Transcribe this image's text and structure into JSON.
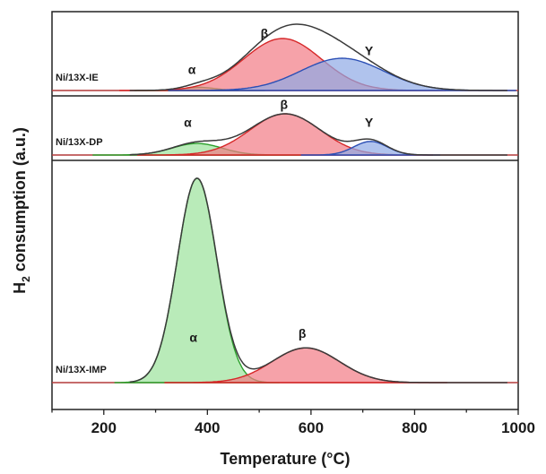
{
  "chart_data": {
    "type": "area",
    "title": "",
    "xlabel": "Temperature (°C)",
    "ylabel_main": "H",
    "ylabel_sub": "2",
    "ylabel_rest": " consumption (a.u.)",
    "xlim": [
      100,
      1000
    ],
    "xticks": [
      200,
      400,
      600,
      800,
      1000
    ],
    "grid": false,
    "panels": [
      {
        "name": "Ni/13X-IE",
        "peaks": [
          {
            "label": "α",
            "center": 385,
            "amplitude": 0.06,
            "sigma": 30,
            "color": "#2ca02c",
            "fill": "#9be39b"
          },
          {
            "label": "β",
            "center": 545,
            "amplitude": 1.0,
            "sigma": 75,
            "color": "#d62728",
            "fill": "#f27b84"
          },
          {
            "label": "Y",
            "center": 660,
            "amplitude": 0.62,
            "sigma": 80,
            "color": "#2b4fb5",
            "fill": "#8fa9e6"
          }
        ],
        "labels": [
          {
            "text": "α",
            "x": 370,
            "y": 0.32
          },
          {
            "text": "β",
            "x": 510,
            "y": 1.02
          },
          {
            "text": "Y",
            "x": 712,
            "y": 0.68
          }
        ]
      },
      {
        "name": "Ni/13X-DP",
        "peaks": [
          {
            "label": "α",
            "center": 380,
            "amplitude": 0.28,
            "sigma": 48,
            "color": "#2ca02c",
            "fill": "#9be39b"
          },
          {
            "label": "β",
            "center": 550,
            "amplitude": 1.0,
            "sigma": 68,
            "color": "#d62728",
            "fill": "#f27b84"
          },
          {
            "label": "Y",
            "center": 715,
            "amplitude": 0.33,
            "sigma": 32,
            "color": "#2b4fb5",
            "fill": "#8fa9e6"
          }
        ],
        "labels": [
          {
            "text": "α",
            "x": 362,
            "y": 0.68
          },
          {
            "text": "β",
            "x": 548,
            "y": 1.12
          },
          {
            "text": "Y",
            "x": 712,
            "y": 0.68
          }
        ]
      },
      {
        "name": "Ni/13X-IMP",
        "peaks": [
          {
            "label": "α",
            "center": 380,
            "amplitude": 1.0,
            "sigma": 38,
            "color": "#2ca02c",
            "fill": "#9be39b"
          },
          {
            "label": "β",
            "center": 590,
            "amplitude": 0.17,
            "sigma": 65,
            "color": "#d62728",
            "fill": "#f27b84"
          }
        ],
        "labels": [
          {
            "text": "α",
            "x": 373,
            "y": 0.2
          },
          {
            "text": "β",
            "x": 583,
            "y": 0.22
          }
        ]
      }
    ]
  }
}
